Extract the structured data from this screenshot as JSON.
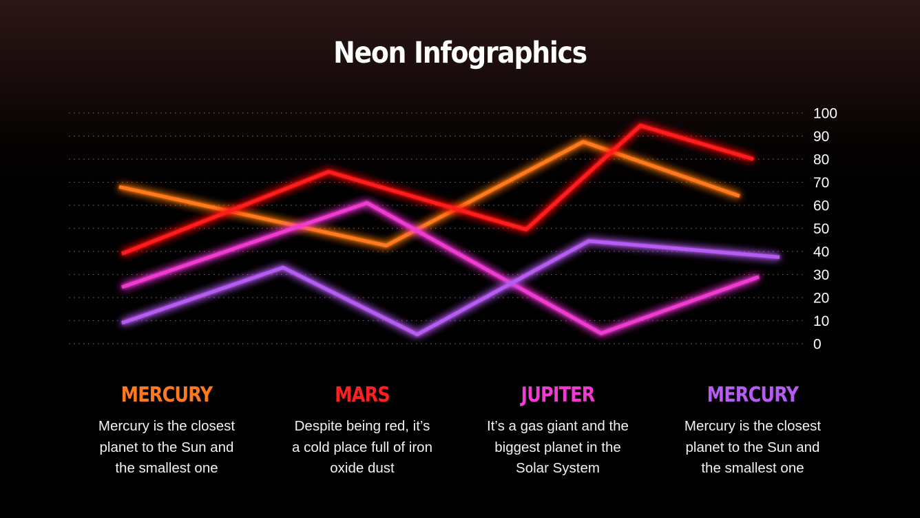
{
  "header": {
    "title": "Neon Infographics"
  },
  "colors": {
    "mercury": "#ff7a1f",
    "mars": "#ff1f1f",
    "jupiter": "#f03ad2",
    "mercury2": "#b65cf2",
    "grid": "#6b6262",
    "background_top": "#2b1616",
    "background_bottom": "#000000"
  },
  "chart_data": {
    "type": "line",
    "title": "",
    "xlabel": "",
    "ylabel": "",
    "ylim": [
      0,
      100
    ],
    "y_ticks": [
      100,
      90,
      80,
      70,
      60,
      50,
      40,
      30,
      20,
      10,
      0
    ],
    "y_axis_position": "right",
    "grid": "horizontal dotted",
    "legend": "none (series described by cards below chart)",
    "series": [
      {
        "name": "Mercury",
        "color": "#ff7a1f",
        "points": [
          [
            0,
            68
          ],
          [
            0.34,
            42.5
          ],
          [
            0.59,
            87.5
          ],
          [
            0.79,
            64
          ]
        ]
      },
      {
        "name": "Mars",
        "color": "#ff1f1f",
        "points": [
          [
            0,
            39
          ],
          [
            0.26,
            74.5
          ],
          [
            0.51,
            49.5
          ],
          [
            0.66,
            94.5
          ],
          [
            0.81,
            80
          ]
        ]
      },
      {
        "name": "Jupiter",
        "color": "#f03ad2",
        "points": [
          [
            0,
            24.5
          ],
          [
            0.31,
            61
          ],
          [
            0.61,
            4.5
          ],
          [
            0.81,
            29
          ]
        ]
      },
      {
        "name": "Mercury (2)",
        "color": "#b65cf2",
        "points": [
          [
            0,
            9
          ],
          [
            0.21,
            33
          ],
          [
            0.38,
            4
          ],
          [
            0.59,
            44.5
          ],
          [
            0.84,
            37.5
          ]
        ]
      }
    ],
    "pixel_points": {
      "Mercury": [
        [
          173,
          68
        ],
        [
          561,
          42.5
        ],
        [
          847,
          87.5
        ],
        [
          1074,
          64
        ]
      ],
      "Mars": [
        [
          177,
          39
        ],
        [
          477,
          74.5
        ],
        [
          764,
          49.5
        ],
        [
          930,
          94.5
        ],
        [
          1094,
          80
        ]
      ],
      "Jupiter": [
        [
          177,
          24.5
        ],
        [
          533,
          61
        ],
        [
          873,
          4.5
        ],
        [
          1102,
          29
        ]
      ],
      "Mercury (2)": [
        [
          177,
          9
        ],
        [
          411,
          33
        ],
        [
          606,
          4
        ],
        [
          855,
          44.5
        ],
        [
          1132,
          37.5
        ]
      ]
    }
  },
  "cards": [
    {
      "title": "MERCURY",
      "color": "#ff7a1f",
      "lines": [
        "Mercury is the closest",
        "planet to the Sun and",
        "the smallest one"
      ]
    },
    {
      "title": "MARS",
      "color": "#ff1f1f",
      "lines": [
        "Despite being red, it’s",
        "a cold place full of iron",
        "oxide dust"
      ]
    },
    {
      "title": "JUPITER",
      "color": "#f03ad2",
      "lines": [
        "It’s a gas giant and the",
        "biggest planet in the",
        "Solar System"
      ]
    },
    {
      "title": "MERCURY",
      "color": "#b65cf2",
      "lines": [
        "Mercury is the closest",
        "planet to the Sun and",
        "the smallest one"
      ]
    }
  ]
}
